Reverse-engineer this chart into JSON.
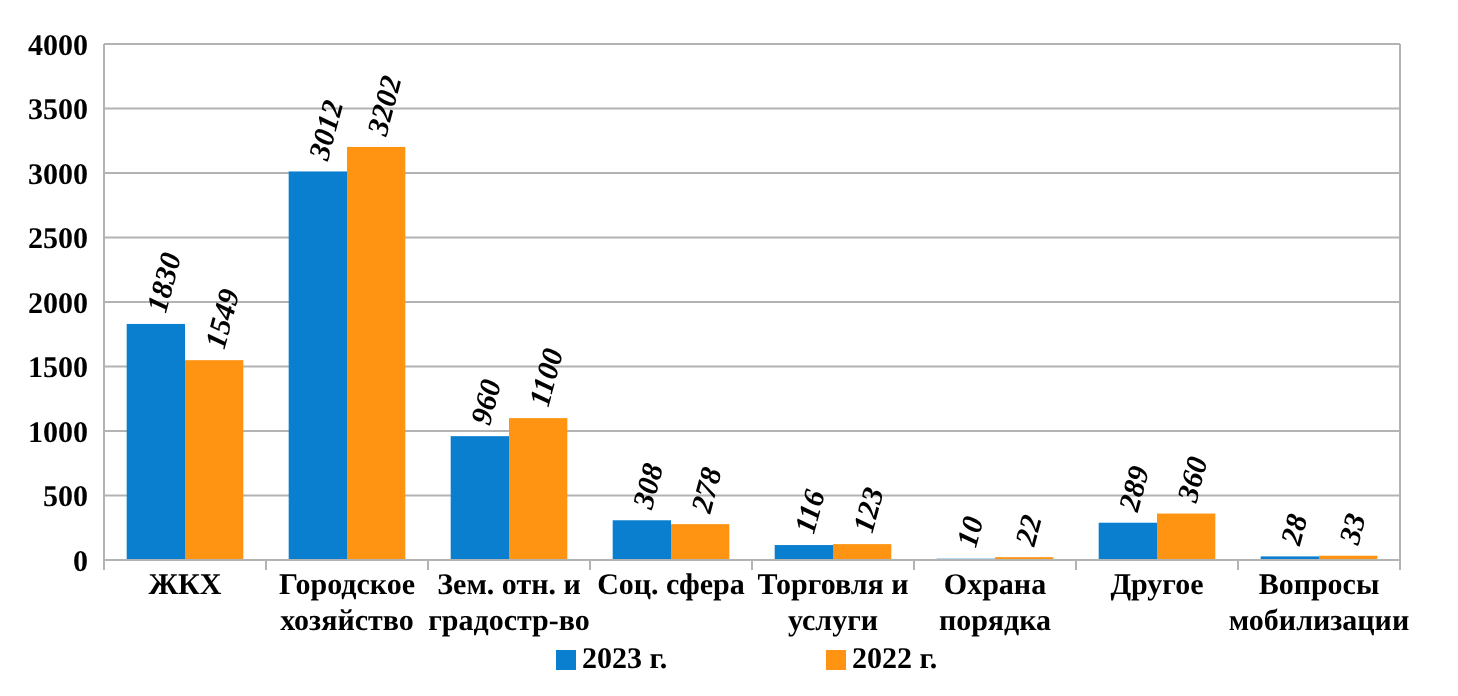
{
  "chart_data": {
    "type": "bar",
    "categories": [
      "ЖКХ",
      "Городское хозяйство",
      "Зем. отн. и градостр-во",
      "Соц. сфера",
      "Торговля и услуги",
      "Охрана порядка",
      "Другое",
      "Вопросы мобилизации"
    ],
    "series": [
      {
        "name": "2023 г.",
        "color": "#0b7fcf",
        "values": [
          1830,
          3012,
          960,
          308,
          116,
          10,
          289,
          28
        ]
      },
      {
        "name": "2022 г.",
        "color": "#ff9412",
        "values": [
          1549,
          3202,
          1100,
          278,
          123,
          22,
          360,
          33
        ]
      }
    ],
    "ylim": [
      0,
      4000
    ],
    "yticks": [
      0,
      500,
      1000,
      1500,
      2000,
      2500,
      3000,
      3500,
      4000
    ],
    "grid": "y",
    "legend": "bottom",
    "data_labels": true
  }
}
